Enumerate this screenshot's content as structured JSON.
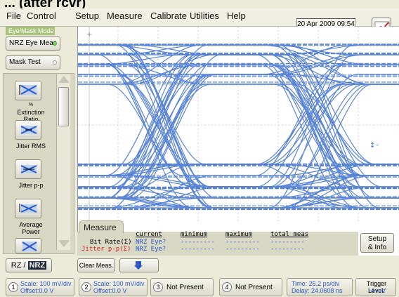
{
  "header": {
    "title": "... (after rcvr)"
  },
  "menu": {
    "file": "File",
    "control": "Control",
    "setup": "Setup",
    "measure": "Measure",
    "calibrate": "Calibrate",
    "utilities": "Utilities",
    "help": "Help"
  },
  "datetime": "20 Apr 2009  09:54",
  "mode": {
    "label": "Eye/Mask Mode",
    "nrz_eye_meas": "NRZ Eye Meas",
    "mask_test": "Mask Test"
  },
  "sidebar": {
    "items": [
      {
        "label": "Extinction\nRatio",
        "icon": "extinction-ratio-icon"
      },
      {
        "label": "Jitter RMS",
        "icon": "jitter-rms-icon"
      },
      {
        "label": "Jitter p-p",
        "icon": "jitter-pp-icon"
      },
      {
        "label": "Average\nPower",
        "icon": "average-power-icon"
      }
    ]
  },
  "measure_tab": "Measure",
  "measure_table": {
    "headers": [
      "current",
      "minimum",
      "maximum",
      "total meas"
    ],
    "rows": [
      {
        "label": "Bit Rate(Σ)",
        "current": "NRZ Eye?",
        "minimum": "---------",
        "maximum": "---------",
        "total": "---------",
        "color": "#000000"
      },
      {
        "label": "Jitter p-p(Σ)",
        "current": "NRZ Eye?",
        "minimum": "---------",
        "maximum": "---------",
        "total": "---------",
        "color": "#d61f1f"
      }
    ]
  },
  "setup_info": {
    "line1": "Setup",
    "line2": "& Info"
  },
  "rz_nrz": {
    "rz": "RZ / ",
    "nrz": "NRZ"
  },
  "clear_meas": "Clear Meas.",
  "channels": [
    {
      "num": "1",
      "scale": "Scale: 100 mV/div",
      "offset": "Offset:0.0 V"
    },
    {
      "num": "2",
      "scale": "Scale: 100 mV/div",
      "offset": "Offset:0.0 V"
    },
    {
      "num": "3",
      "text": "Not Present"
    },
    {
      "num": "4",
      "text": "Not Present"
    }
  ],
  "timebase": {
    "time": "Time: 25.2 ps/div",
    "delay": "Delay: 24.0608 ns"
  },
  "trigger": {
    "label": "Trigger Level:",
    "value": "-4 mV"
  },
  "colors": {
    "trace": "#3d6fd0",
    "accent_green": "#a9c37c",
    "jitter_red": "#d61f1f"
  }
}
